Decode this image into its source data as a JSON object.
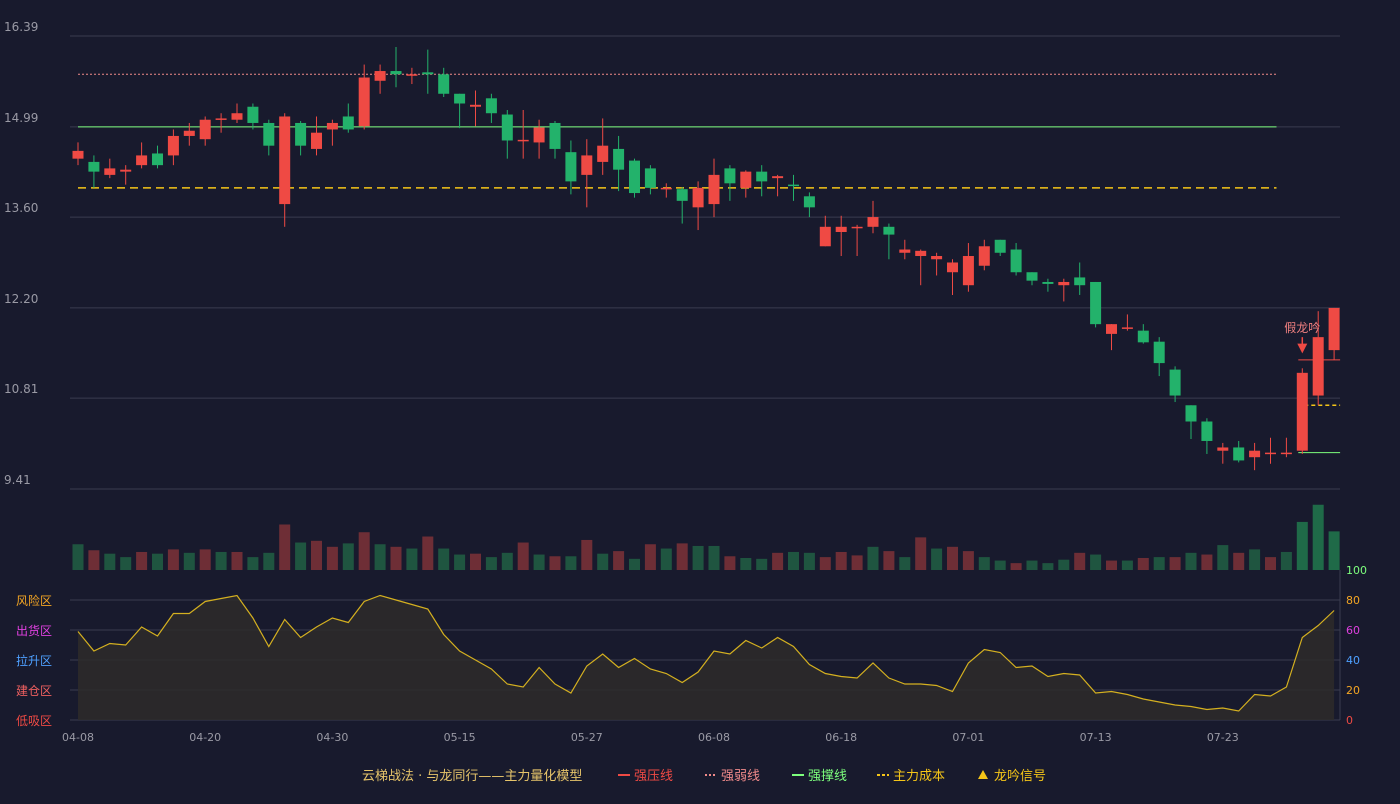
{
  "chart_data": {
    "type": "candlestick",
    "price_axis": {
      "ticks": [
        "16.39",
        "14.99",
        "13.60",
        "12.20",
        "10.81",
        "9.41"
      ],
      "min": 9.41,
      "max": 16.39
    },
    "x_tick_labels": [
      {
        "index": 0,
        "label": "04-08"
      },
      {
        "index": 8,
        "label": "04-20"
      },
      {
        "index": 16,
        "label": "04-30"
      },
      {
        "index": 24,
        "label": "05-15"
      },
      {
        "index": 32,
        "label": "05-27"
      },
      {
        "index": 40,
        "label": "06-08"
      },
      {
        "index": 48,
        "label": "06-18"
      },
      {
        "index": 56,
        "label": "07-01"
      },
      {
        "index": 64,
        "label": "07-13"
      },
      {
        "index": 72,
        "label": "07-23"
      }
    ],
    "candles": [
      [
        14.5,
        14.62,
        14.75,
        14.4
      ],
      [
        14.45,
        14.3,
        14.55,
        14.05
      ],
      [
        14.25,
        14.35,
        14.5,
        14.2
      ],
      [
        14.3,
        14.33,
        14.4,
        14.1
      ],
      [
        14.4,
        14.55,
        14.75,
        14.35
      ],
      [
        14.58,
        14.4,
        14.7,
        14.35
      ],
      [
        14.55,
        14.85,
        14.95,
        14.4
      ],
      [
        14.85,
        14.93,
        15.05,
        14.7
      ],
      [
        14.8,
        15.1,
        15.15,
        14.7
      ],
      [
        15.1,
        15.12,
        15.2,
        14.9
      ],
      [
        15.1,
        15.2,
        15.35,
        15.05
      ],
      [
        15.3,
        15.05,
        15.35,
        14.95
      ],
      [
        15.05,
        14.7,
        15.1,
        14.55
      ],
      [
        13.8,
        15.15,
        15.2,
        13.45
      ],
      [
        15.05,
        14.7,
        15.08,
        14.55
      ],
      [
        14.65,
        14.9,
        15.15,
        14.55
      ],
      [
        14.95,
        15.05,
        15.1,
        14.7
      ],
      [
        15.15,
        14.95,
        15.35,
        14.9
      ],
      [
        15.0,
        15.75,
        15.95,
        14.95
      ],
      [
        15.7,
        15.85,
        15.95,
        15.5
      ],
      [
        15.85,
        15.8,
        16.22,
        15.6
      ],
      [
        15.8,
        15.8,
        15.9,
        15.65
      ],
      [
        15.83,
        15.8,
        16.18,
        15.5
      ],
      [
        15.8,
        15.5,
        15.9,
        15.45
      ],
      [
        15.5,
        15.35,
        15.5,
        14.97
      ],
      [
        15.3,
        15.33,
        15.55,
        15.0
      ],
      [
        15.43,
        15.2,
        15.5,
        15.05
      ],
      [
        15.18,
        14.78,
        15.25,
        14.5
      ],
      [
        14.77,
        14.79,
        15.25,
        14.5
      ],
      [
        14.75,
        14.98,
        15.1,
        14.5
      ],
      [
        15.05,
        14.65,
        15.08,
        14.5
      ],
      [
        14.6,
        14.15,
        14.78,
        13.95
      ],
      [
        14.25,
        14.55,
        14.8,
        13.75
      ],
      [
        14.45,
        14.7,
        15.12,
        14.25
      ],
      [
        14.65,
        14.33,
        14.85,
        14.0
      ],
      [
        14.47,
        13.97,
        14.5,
        13.9
      ],
      [
        14.35,
        14.05,
        14.4,
        13.95
      ],
      [
        14.05,
        14.05,
        14.12,
        13.9
      ],
      [
        14.03,
        13.85,
        14.06,
        13.5
      ],
      [
        13.75,
        14.05,
        14.15,
        13.4
      ],
      [
        13.8,
        14.25,
        14.5,
        13.6
      ],
      [
        14.35,
        14.12,
        14.4,
        13.85
      ],
      [
        14.05,
        14.3,
        14.32,
        13.9
      ],
      [
        14.3,
        14.15,
        14.4,
        13.92
      ],
      [
        14.2,
        14.23,
        14.25,
        13.92
      ],
      [
        14.1,
        14.09,
        14.25,
        13.85
      ],
      [
        13.92,
        13.75,
        13.98,
        13.6
      ],
      [
        13.15,
        13.45,
        13.62,
        13.15
      ],
      [
        13.37,
        13.45,
        13.62,
        13.0
      ],
      [
        13.45,
        13.45,
        13.48,
        13.0
      ],
      [
        13.45,
        13.6,
        13.85,
        13.35
      ],
      [
        13.45,
        13.33,
        13.5,
        12.95
      ],
      [
        13.05,
        13.1,
        13.25,
        12.95
      ],
      [
        13.0,
        13.08,
        13.1,
        12.55
      ],
      [
        12.95,
        13.0,
        13.05,
        12.7
      ],
      [
        12.75,
        12.9,
        12.95,
        12.4
      ],
      [
        12.55,
        13.0,
        13.2,
        12.45
      ],
      [
        12.85,
        13.15,
        13.25,
        12.78
      ],
      [
        13.25,
        13.05,
        13.25,
        13.0
      ],
      [
        13.1,
        12.75,
        13.2,
        12.7
      ],
      [
        12.75,
        12.62,
        12.75,
        12.55
      ],
      [
        12.6,
        12.57,
        12.65,
        12.45
      ],
      [
        12.55,
        12.6,
        12.65,
        12.3
      ],
      [
        12.67,
        12.55,
        12.9,
        12.4
      ],
      [
        12.6,
        11.95,
        12.6,
        11.9
      ],
      [
        11.8,
        11.95,
        11.95,
        11.55
      ],
      [
        11.9,
        11.9,
        12.1,
        11.85
      ],
      [
        11.85,
        11.67,
        11.95,
        11.65
      ],
      [
        11.68,
        11.35,
        11.75,
        11.15
      ],
      [
        11.25,
        10.85,
        11.3,
        10.75
      ],
      [
        10.7,
        10.45,
        10.7,
        10.18
      ],
      [
        10.45,
        10.15,
        10.5,
        9.95
      ],
      [
        10.0,
        10.05,
        10.12,
        9.8
      ],
      [
        10.05,
        9.85,
        10.15,
        9.82
      ],
      [
        9.9,
        10.0,
        10.12,
        9.7
      ],
      [
        9.95,
        9.97,
        10.2,
        9.8
      ],
      [
        9.97,
        9.97,
        10.2,
        9.9
      ],
      [
        10.0,
        11.2,
        11.27,
        9.95
      ],
      [
        10.85,
        11.75,
        12.15,
        10.7
      ],
      [
        11.55,
        12.2,
        12.2,
        11.4
      ]
    ],
    "volume": [
      [
        0.3,
        "up"
      ],
      [
        0.23,
        "down"
      ],
      [
        0.19,
        "up"
      ],
      [
        0.15,
        "up"
      ],
      [
        0.21,
        "down"
      ],
      [
        0.19,
        "up"
      ],
      [
        0.24,
        "down"
      ],
      [
        0.2,
        "up"
      ],
      [
        0.24,
        "down"
      ],
      [
        0.21,
        "up"
      ],
      [
        0.21,
        "down"
      ],
      [
        0.15,
        "up"
      ],
      [
        0.2,
        "up"
      ],
      [
        0.53,
        "down"
      ],
      [
        0.32,
        "up"
      ],
      [
        0.34,
        "down"
      ],
      [
        0.27,
        "down"
      ],
      [
        0.31,
        "up"
      ],
      [
        0.44,
        "down"
      ],
      [
        0.3,
        "up"
      ],
      [
        0.27,
        "down"
      ],
      [
        0.25,
        "up"
      ],
      [
        0.39,
        "down"
      ],
      [
        0.25,
        "up"
      ],
      [
        0.18,
        "up"
      ],
      [
        0.19,
        "down"
      ],
      [
        0.15,
        "up"
      ],
      [
        0.2,
        "up"
      ],
      [
        0.32,
        "down"
      ],
      [
        0.18,
        "up"
      ],
      [
        0.16,
        "down"
      ],
      [
        0.16,
        "up"
      ],
      [
        0.35,
        "down"
      ],
      [
        0.19,
        "up"
      ],
      [
        0.22,
        "down"
      ],
      [
        0.13,
        "up"
      ],
      [
        0.3,
        "down"
      ],
      [
        0.25,
        "up"
      ],
      [
        0.31,
        "down"
      ],
      [
        0.28,
        "up"
      ],
      [
        0.28,
        "up"
      ],
      [
        0.16,
        "down"
      ],
      [
        0.14,
        "up"
      ],
      [
        0.13,
        "up"
      ],
      [
        0.2,
        "down"
      ],
      [
        0.21,
        "up"
      ],
      [
        0.2,
        "up"
      ],
      [
        0.15,
        "down"
      ],
      [
        0.21,
        "down"
      ],
      [
        0.17,
        "down"
      ],
      [
        0.27,
        "up"
      ],
      [
        0.22,
        "down"
      ],
      [
        0.15,
        "up"
      ],
      [
        0.38,
        "down"
      ],
      [
        0.25,
        "up"
      ],
      [
        0.27,
        "down"
      ],
      [
        0.22,
        "down"
      ],
      [
        0.15,
        "up"
      ],
      [
        0.11,
        "up"
      ],
      [
        0.08,
        "down"
      ],
      [
        0.11,
        "up"
      ],
      [
        0.08,
        "up"
      ],
      [
        0.12,
        "up"
      ],
      [
        0.2,
        "down"
      ],
      [
        0.18,
        "up"
      ],
      [
        0.11,
        "down"
      ],
      [
        0.11,
        "up"
      ],
      [
        0.14,
        "down"
      ],
      [
        0.15,
        "up"
      ],
      [
        0.15,
        "down"
      ],
      [
        0.2,
        "up"
      ],
      [
        0.18,
        "down"
      ],
      [
        0.29,
        "up"
      ],
      [
        0.2,
        "down"
      ],
      [
        0.24,
        "up"
      ],
      [
        0.15,
        "down"
      ],
      [
        0.21,
        "up"
      ],
      [
        0.56,
        "down"
      ],
      [
        0.76,
        "up"
      ],
      [
        0.45,
        "down"
      ]
    ],
    "oscillator": {
      "axis_ticks": [
        "100",
        "80",
        "60",
        "40",
        "20",
        "0"
      ],
      "zone_labels": [
        "风险区",
        "出货区",
        "拉升区",
        "建仓区",
        "低吸区"
      ],
      "values": [
        59,
        46,
        51,
        50,
        62,
        56,
        71,
        71,
        79,
        81,
        83,
        68,
        49,
        67,
        55,
        62,
        68,
        65,
        79,
        83,
        80,
        77,
        74,
        57,
        46,
        40,
        34,
        24,
        22,
        35,
        24,
        18,
        36,
        44,
        35,
        41,
        34,
        31,
        25,
        32,
        46,
        44,
        53,
        48,
        55,
        49,
        37,
        31,
        29,
        28,
        38,
        28,
        24,
        24,
        23,
        19,
        38,
        47,
        45,
        35,
        36,
        29,
        31,
        30,
        18,
        19,
        17,
        14,
        12,
        10,
        9,
        7,
        8,
        6,
        17,
        16,
        22,
        55,
        63,
        73
      ]
    },
    "reference_lines": {
      "strong_pressure": 15.8,
      "weak": 15.8,
      "support": 14.99,
      "main_cost": 14.05,
      "current_pressure": 11.4,
      "current_cost": 10.7,
      "current_support": 9.97
    },
    "annotation": {
      "label": "假龙吟",
      "index": 77
    },
    "legend": {
      "title": "云梯战法 · 与龙同行——主力量化模型",
      "items": [
        {
          "label": "强压线",
          "color": "#ef4a44",
          "style": "solid"
        },
        {
          "label": "强弱线",
          "color": "#f08a8a",
          "style": "dotted"
        },
        {
          "label": "强撑线",
          "color": "#7dff7d",
          "style": "solid"
        },
        {
          "label": "主力成本",
          "color": "#f5c518",
          "style": "dashed"
        },
        {
          "label": "龙吟信号",
          "color": "#f5c518",
          "style": "triangle"
        }
      ]
    },
    "colors": {
      "up": "#ef4a44",
      "down": "#23b26b",
      "vol_up": "#6e2e36",
      "vol_down": "#1f5540",
      "background": "#181a2d",
      "grid": "#3a3c50",
      "axis_text": "#9a9aa5",
      "oscillator_line": "#d4b020",
      "oscillator_fill": "#2e2b2a"
    }
  }
}
